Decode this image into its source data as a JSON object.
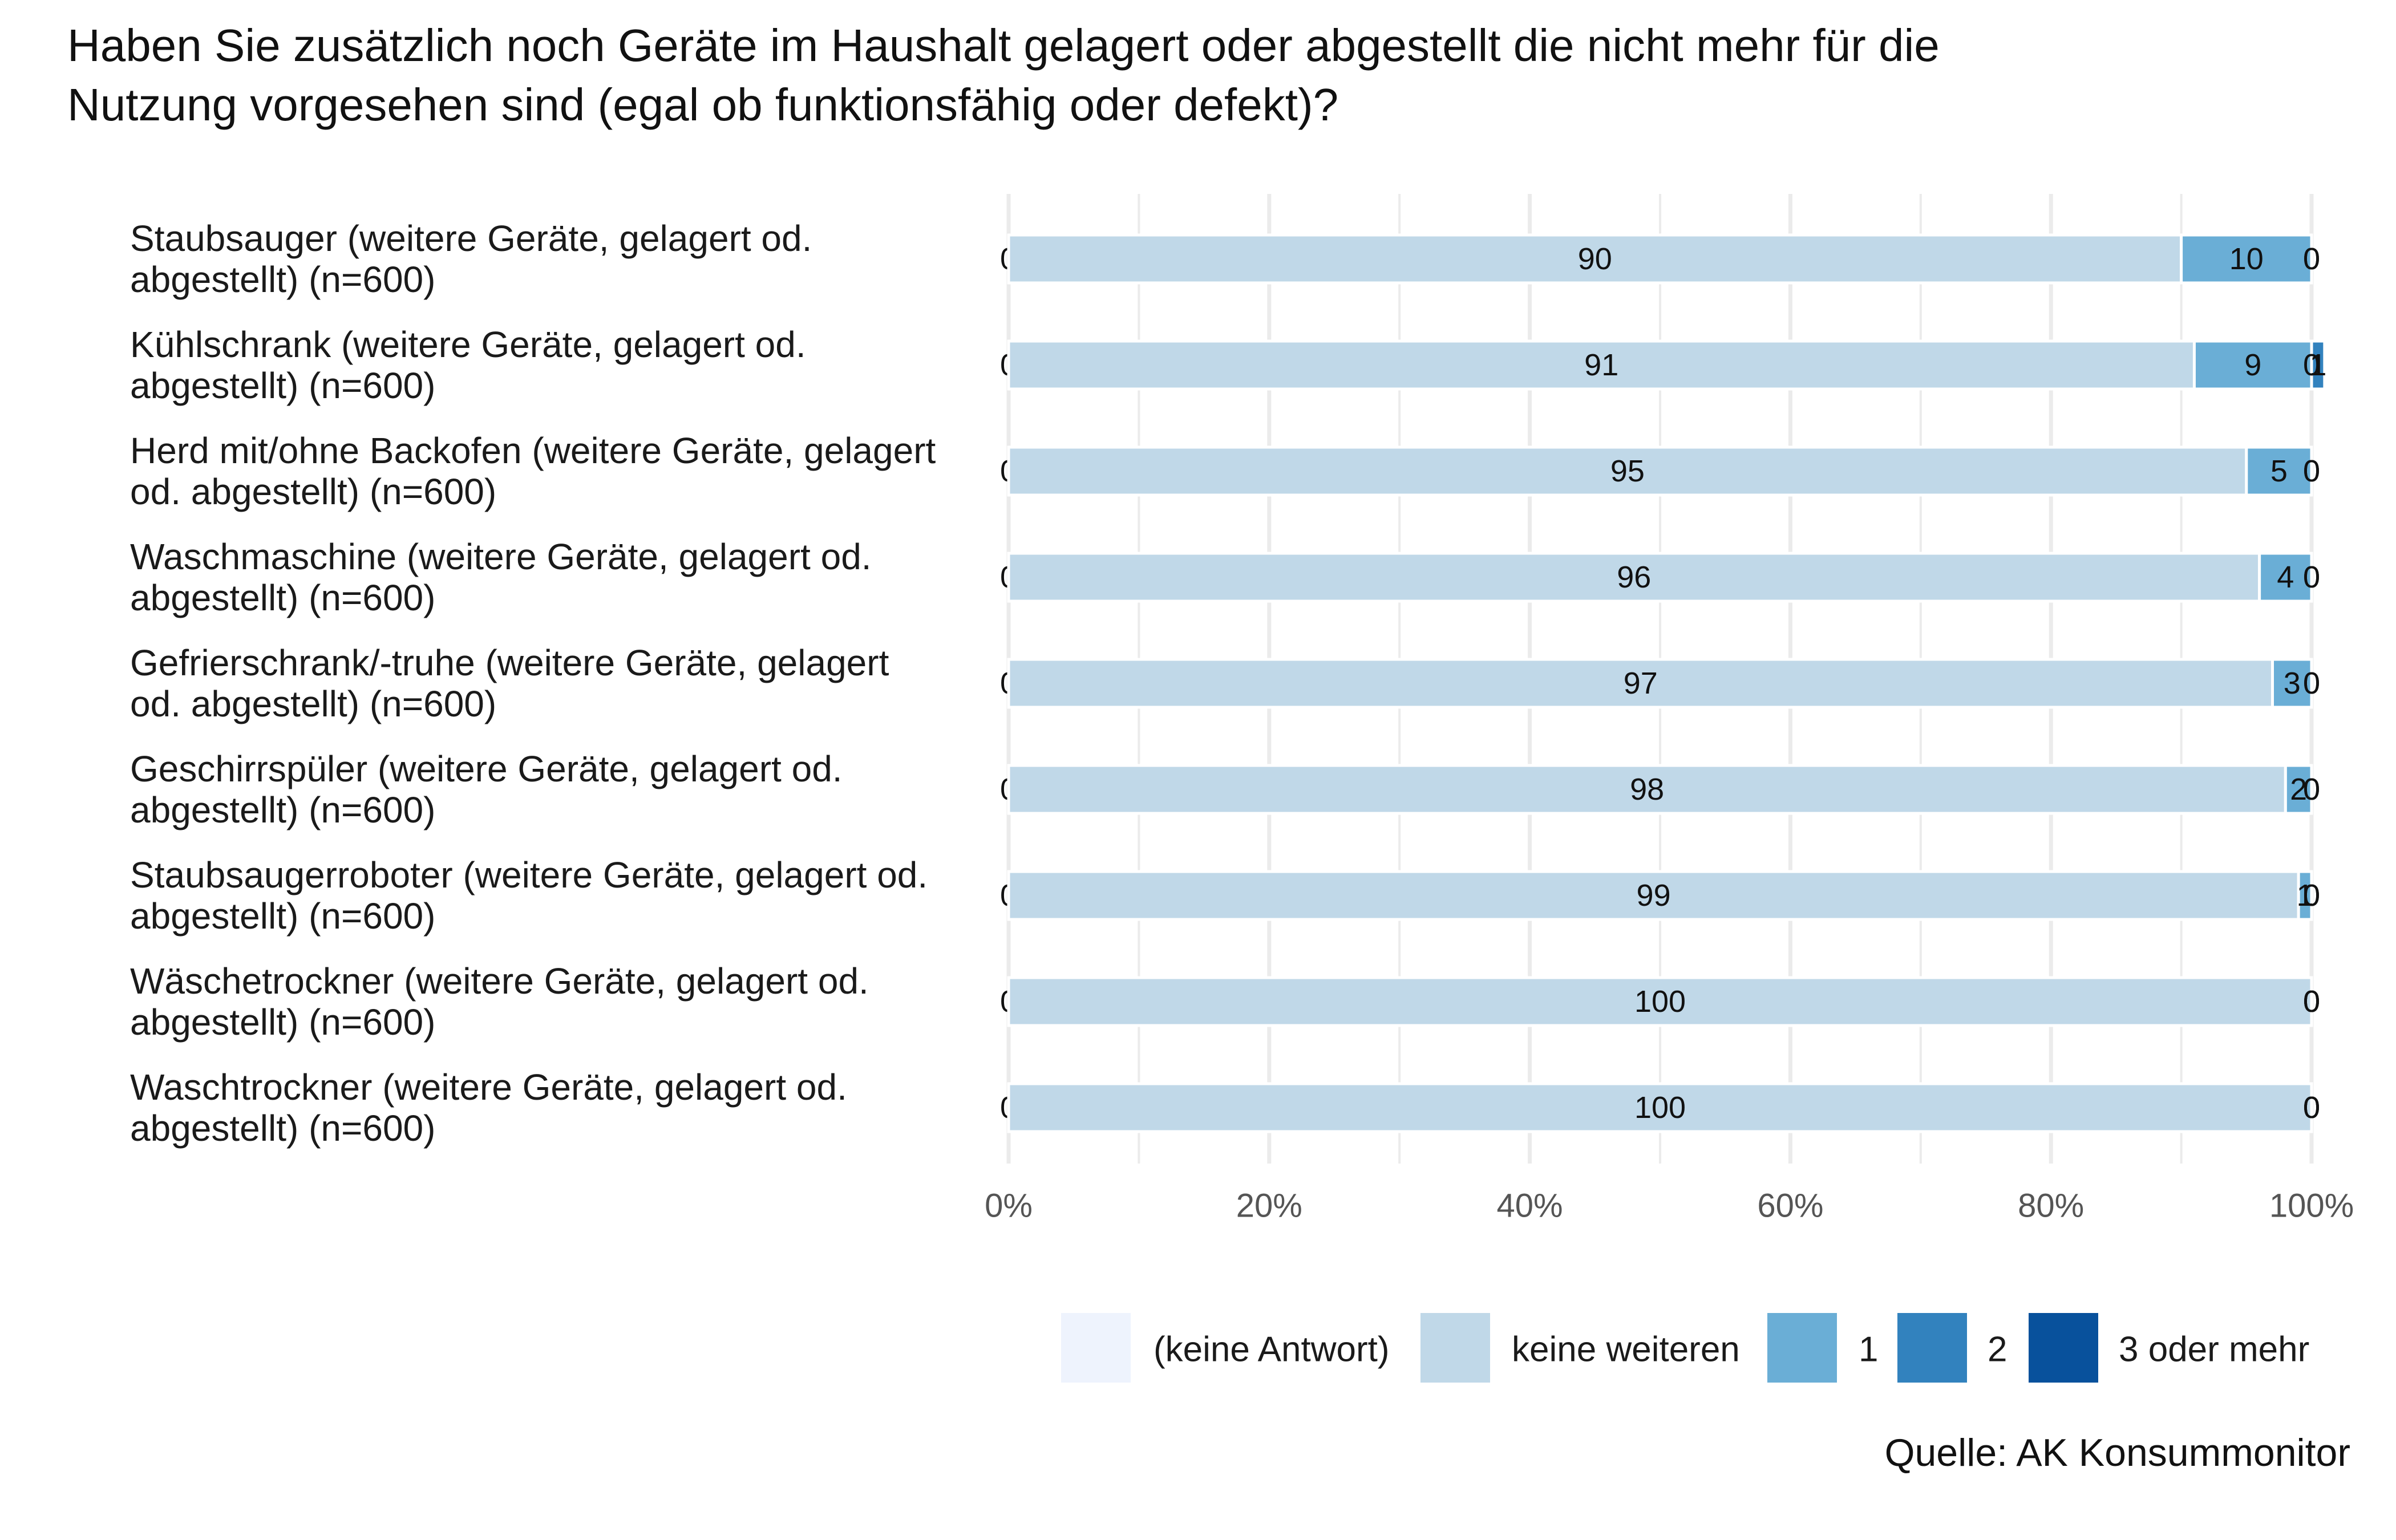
{
  "chart_data": {
    "type": "bar",
    "orientation": "horizontal",
    "stacked": true,
    "percent_scale": true,
    "title": "Haben Sie zusätzlich noch Geräte im Haushalt gelagert oder abgestellt die nicht mehr für die",
    "title_line_2": "Nutzung vorgesehen sind (egal ob funktionsfähig oder defekt)?",
    "categories": [
      [
        "Staubsauger (weitere Geräte, gelagert od.",
        "abgestellt) (n=600)"
      ],
      [
        "Kühlschrank (weitere Geräte, gelagert od.",
        "abgestellt) (n=600)"
      ],
      [
        "Herd mit/ohne Backofen (weitere Geräte, gelagert",
        "od. abgestellt) (n=600)"
      ],
      [
        "Waschmaschine (weitere Geräte, gelagert od.",
        "abgestellt) (n=600)"
      ],
      [
        "Gefrierschrank/-truhe (weitere Geräte, gelagert",
        "od. abgestellt) (n=600)"
      ],
      [
        "Geschirrspüler (weitere Geräte, gelagert od.",
        "abgestellt) (n=600)"
      ],
      [
        "Staubsaugerroboter (weitere Geräte, gelagert od.",
        "abgestellt) (n=600)"
      ],
      [
        "Wäschetrockner (weitere Geräte, gelagert od.",
        "abgestellt) (n=600)"
      ],
      [
        "Waschtrockner (weitere Geräte, gelagert od.",
        "abgestellt) (n=600)"
      ]
    ],
    "series": [
      {
        "name": "(keine Antwort)",
        "color": "#eef3fd",
        "values": [
          0,
          0,
          0,
          0,
          0,
          0,
          0,
          0,
          0
        ]
      },
      {
        "name": "keine weiteren",
        "color": "#c0d8e8",
        "values": [
          90,
          91,
          95,
          96,
          97,
          98,
          99,
          100,
          100
        ]
      },
      {
        "name": "1",
        "color": "#6aaed6",
        "values": [
          10,
          9,
          5,
          4,
          3,
          2,
          1,
          0,
          0
        ]
      },
      {
        "name": "2",
        "color": "#3282be",
        "values": [
          0,
          1,
          0,
          0,
          0,
          0,
          0,
          0,
          0
        ]
      },
      {
        "name": "3 oder mehr",
        "color": "#08519c",
        "values": [
          0,
          0,
          0,
          0,
          0,
          0,
          0,
          0,
          0
        ]
      }
    ],
    "xlim": [
      0,
      100
    ],
    "xticks": [
      "0%",
      "20%",
      "40%",
      "60%",
      "80%",
      "100%"
    ],
    "legend_position": "bottom-right",
    "source": "Quelle: AK Konsummonitor"
  }
}
